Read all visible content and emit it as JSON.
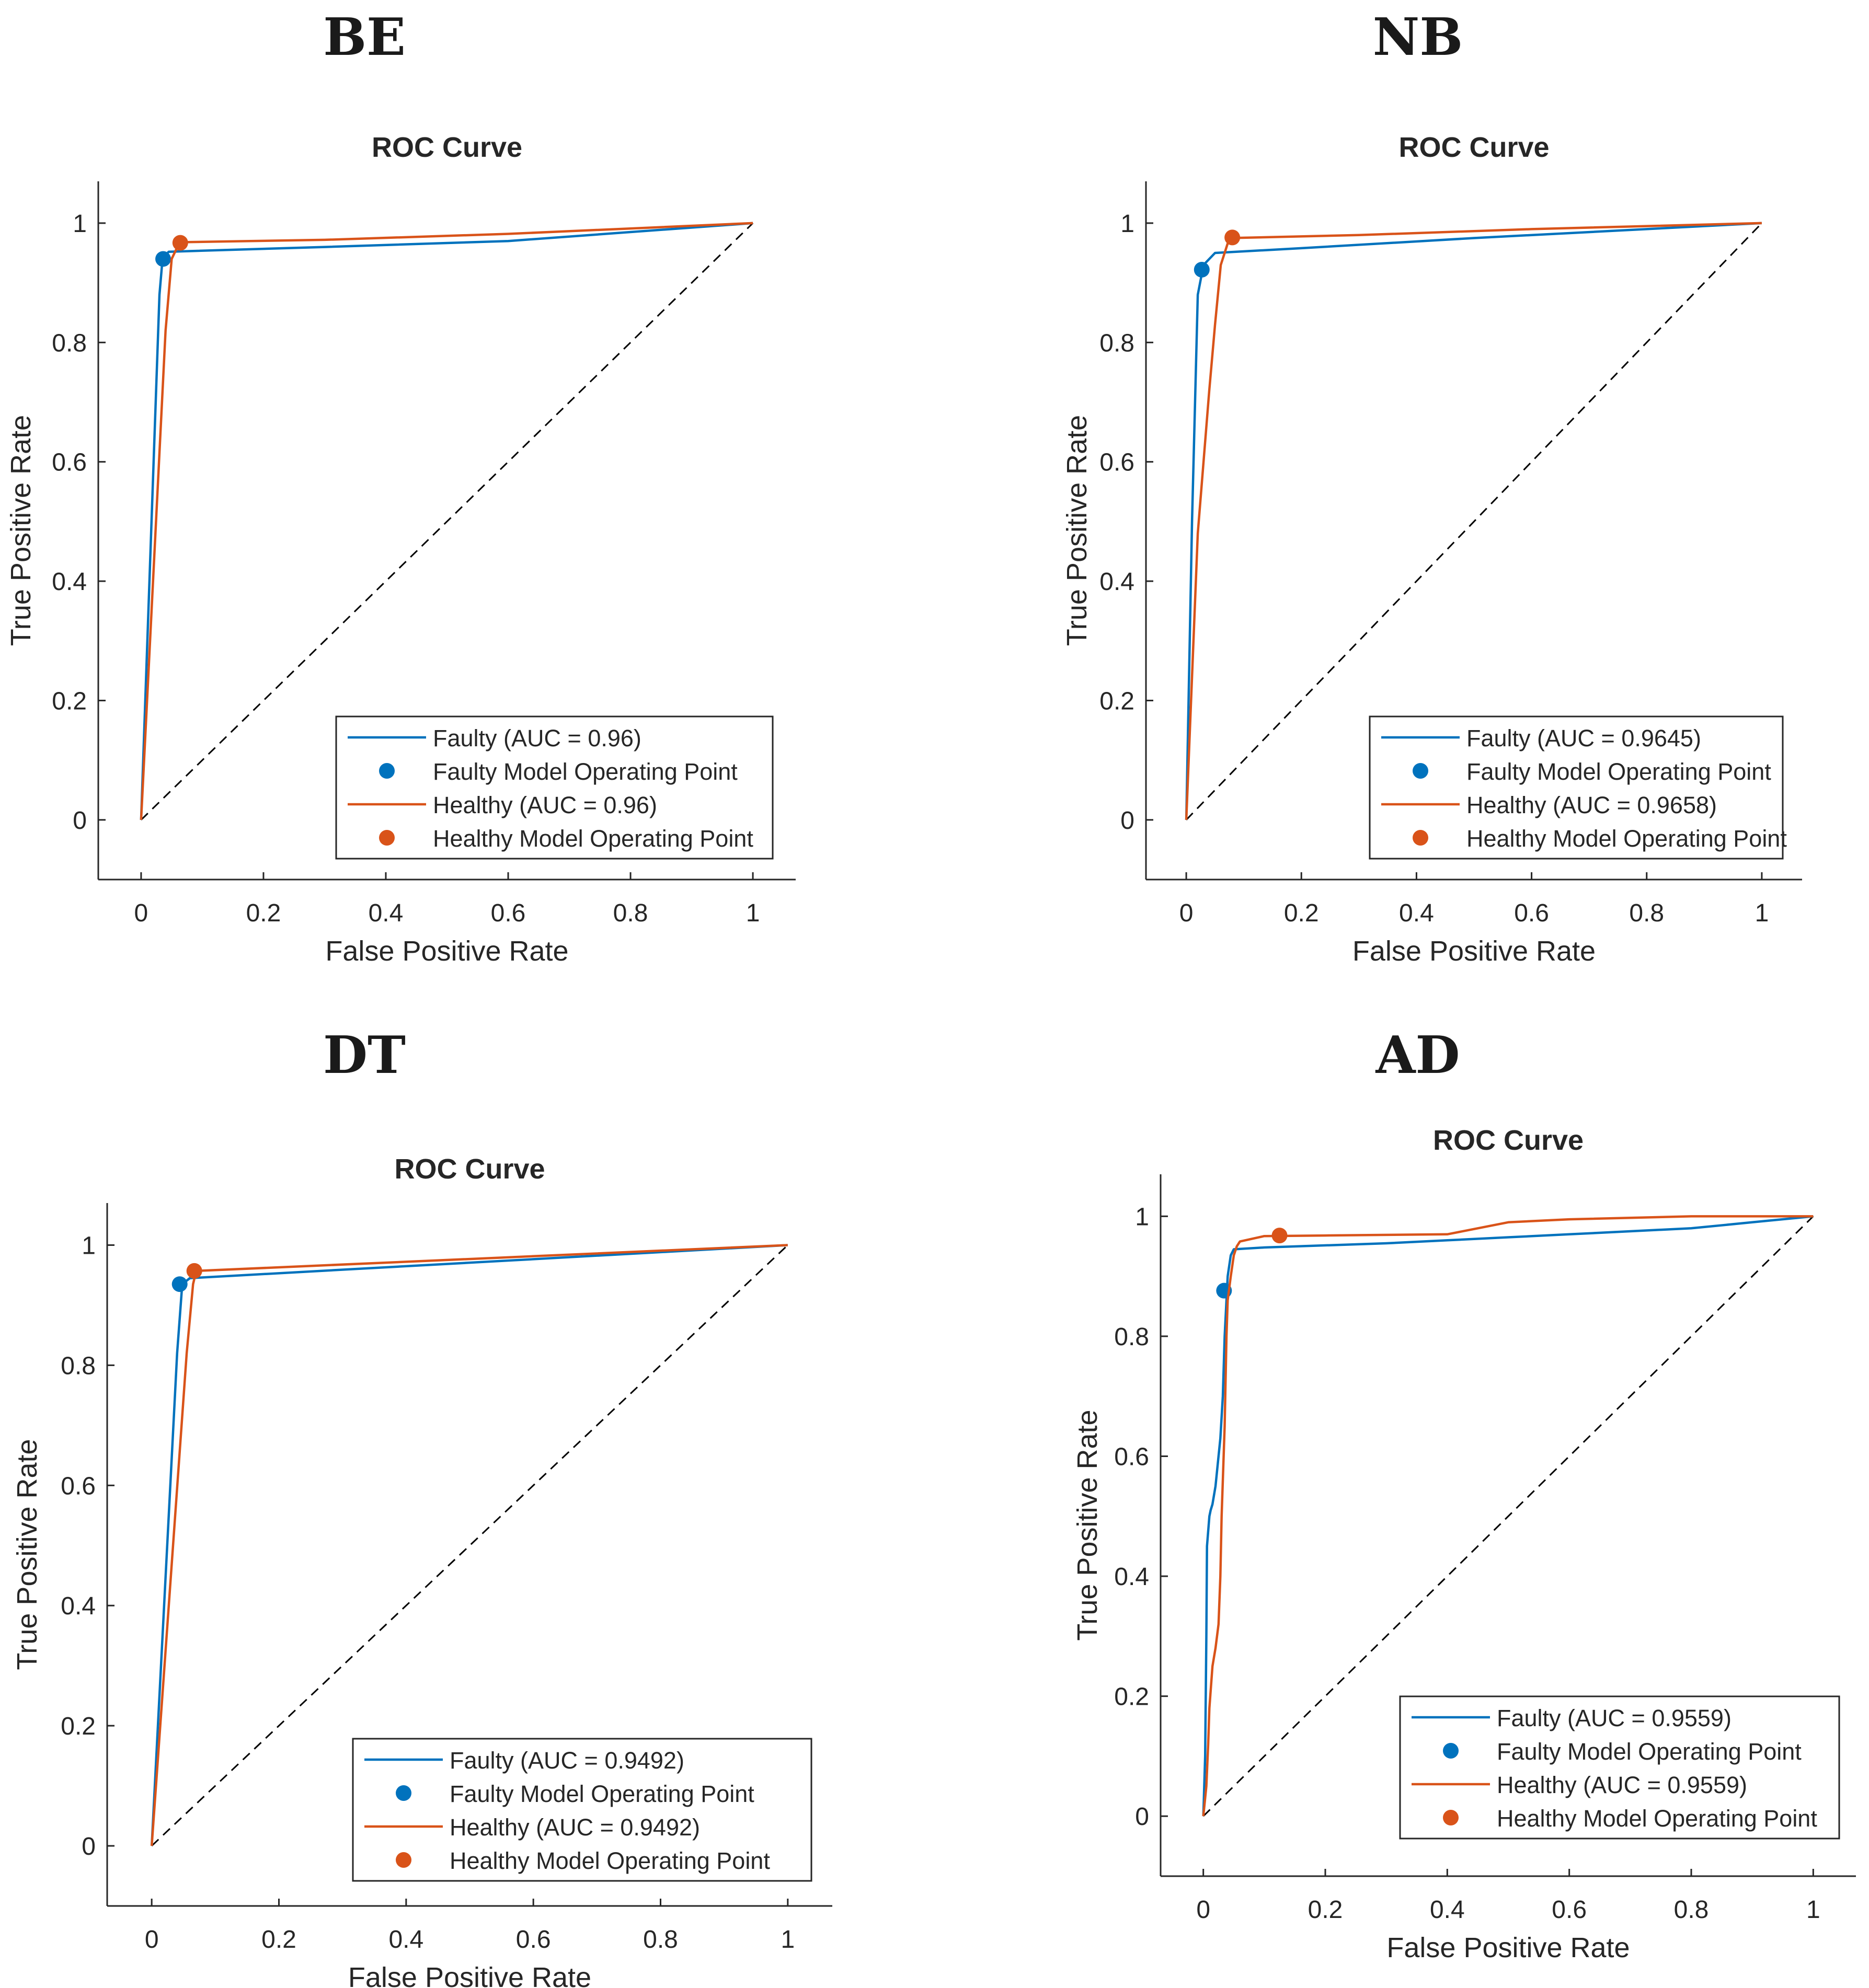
{
  "colors": {
    "faulty": "#0072BD",
    "healthy": "#D95319",
    "axis": "#262626",
    "diagonal": "#000000"
  },
  "chart_data": [
    {
      "type": "line",
      "panel_label": "BE",
      "title": "ROC Curve",
      "xlabel": "False Positive Rate",
      "ylabel": "True Positive Rate",
      "xlim": [
        -0.07,
        1.07
      ],
      "ylim": [
        -0.1,
        1.07
      ],
      "xticks": [
        0,
        0.2,
        0.4,
        0.6,
        0.8,
        1
      ],
      "xtick_labels": [
        "0",
        "0.2",
        "0.4",
        "0.6",
        "0.8",
        "1"
      ],
      "yticks": [
        0,
        0.2,
        0.4,
        0.6,
        0.8,
        1
      ],
      "ytick_labels": [
        "0",
        "0.2",
        "0.4",
        "0.6",
        "0.8",
        "1"
      ],
      "grid": false,
      "legend_position": "bottom-right",
      "series": [
        {
          "name": "Faulty (AUC = 0.96)",
          "kind": "line",
          "color_key": "faulty",
          "x": [
            0,
            0.03,
            0.035,
            0.045,
            0.3,
            0.6,
            1
          ],
          "y": [
            0,
            0.88,
            0.94,
            0.952,
            0.96,
            0.97,
            1
          ]
        },
        {
          "name": "Faulty Model Operating Point",
          "kind": "point",
          "color_key": "faulty",
          "x": [
            0.036
          ],
          "y": [
            0.94
          ]
        },
        {
          "name": "Healthy (AUC = 0.96)",
          "kind": "line",
          "color_key": "healthy",
          "x": [
            0,
            0.04,
            0.05,
            0.063,
            0.3,
            0.6,
            1
          ],
          "y": [
            0,
            0.82,
            0.94,
            0.968,
            0.972,
            0.982,
            1
          ]
        },
        {
          "name": "Healthy Model Operating Point",
          "kind": "point",
          "color_key": "healthy",
          "x": [
            0.064
          ],
          "y": [
            0.967
          ]
        }
      ]
    },
    {
      "type": "line",
      "panel_label": "NB",
      "title": "ROC Curve",
      "xlabel": "False Positive Rate",
      "ylabel": "True Positive Rate",
      "xlim": [
        -0.07,
        1.07
      ],
      "ylim": [
        -0.1,
        1.07
      ],
      "xticks": [
        0,
        0.2,
        0.4,
        0.6,
        0.8,
        1
      ],
      "xtick_labels": [
        "0",
        "0.2",
        "0.4",
        "0.6",
        "0.8",
        "1"
      ],
      "yticks": [
        0,
        0.2,
        0.4,
        0.6,
        0.8,
        1
      ],
      "ytick_labels": [
        "0",
        "0.2",
        "0.4",
        "0.6",
        "0.8",
        "1"
      ],
      "grid": false,
      "legend_position": "bottom-right",
      "series": [
        {
          "name": "Faulty (AUC = 0.9645)",
          "kind": "line",
          "color_key": "faulty",
          "x": [
            0,
            0.01,
            0.02,
            0.03,
            0.05,
            0.2,
            0.5,
            1
          ],
          "y": [
            0,
            0.5,
            0.88,
            0.93,
            0.95,
            0.958,
            0.975,
            1
          ]
        },
        {
          "name": "Faulty Model Operating Point",
          "kind": "point",
          "color_key": "faulty",
          "x": [
            0.027
          ],
          "y": [
            0.922
          ]
        },
        {
          "name": "Healthy (AUC = 0.9658)",
          "kind": "line",
          "color_key": "healthy",
          "x": [
            0,
            0.02,
            0.04,
            0.05,
            0.06,
            0.075,
            0.3,
            0.6,
            1
          ],
          "y": [
            0,
            0.48,
            0.72,
            0.83,
            0.93,
            0.975,
            0.98,
            0.99,
            1
          ]
        },
        {
          "name": "Healthy Model Operating Point",
          "kind": "point",
          "color_key": "healthy",
          "x": [
            0.08
          ],
          "y": [
            0.976
          ]
        }
      ]
    },
    {
      "type": "line",
      "panel_label": "DT",
      "title": "ROC Curve",
      "xlabel": "False Positive Rate",
      "ylabel": "True Positive Rate",
      "xlim": [
        -0.07,
        1.07
      ],
      "ylim": [
        -0.1,
        1.07
      ],
      "xticks": [
        0,
        0.2,
        0.4,
        0.6,
        0.8,
        1
      ],
      "xtick_labels": [
        "0",
        "0.2",
        "0.4",
        "0.6",
        "0.8",
        "1"
      ],
      "yticks": [
        0,
        0.2,
        0.4,
        0.6,
        0.8,
        1
      ],
      "ytick_labels": [
        "0",
        "0.2",
        "0.4",
        "0.6",
        "0.8",
        "1"
      ],
      "grid": false,
      "legend_position": "bottom-right",
      "series": [
        {
          "name": "Faulty (AUC = 0.9492)",
          "kind": "line",
          "color_key": "faulty",
          "x": [
            0,
            0.04,
            0.048,
            0.06,
            1
          ],
          "y": [
            0,
            0.82,
            0.935,
            0.945,
            1
          ]
        },
        {
          "name": "Faulty Model Operating Point",
          "kind": "point",
          "color_key": "faulty",
          "x": [
            0.044
          ],
          "y": [
            0.935
          ]
        },
        {
          "name": "Healthy (AUC = 0.9492)",
          "kind": "line",
          "color_key": "healthy",
          "x": [
            0,
            0.055,
            0.065,
            0.07,
            1
          ],
          "y": [
            0,
            0.82,
            0.935,
            0.957,
            1
          ]
        },
        {
          "name": "Healthy Model Operating Point",
          "kind": "point",
          "color_key": "healthy",
          "x": [
            0.067
          ],
          "y": [
            0.957
          ]
        }
      ]
    },
    {
      "type": "line",
      "panel_label": "AD",
      "title": "ROC Curve",
      "xlabel": "False Positive Rate",
      "ylabel": "True Positive Rate",
      "xlim": [
        -0.07,
        1.07
      ],
      "ylim": [
        -0.1,
        1.07
      ],
      "xticks": [
        0,
        0.2,
        0.4,
        0.6,
        0.8,
        1
      ],
      "xtick_labels": [
        "0",
        "0.2",
        "0.4",
        "0.6",
        "0.8",
        "1"
      ],
      "yticks": [
        0,
        0.2,
        0.4,
        0.6,
        0.8,
        1
      ],
      "ytick_labels": [
        "0",
        "0.2",
        "0.4",
        "0.6",
        "0.8",
        "1"
      ],
      "grid": false,
      "legend_position": "bottom-right",
      "series": [
        {
          "name": "Faulty (AUC = 0.9559)",
          "kind": "line",
          "color_key": "faulty",
          "x": [
            0,
            0.003,
            0.005,
            0.006,
            0.01,
            0.012,
            0.015,
            0.02,
            0.025,
            0.028,
            0.032,
            0.035,
            0.04,
            0.045,
            0.05,
            0.1,
            0.3,
            0.4,
            0.5,
            0.6,
            0.7,
            0.8,
            0.9,
            1
          ],
          "y": [
            0,
            0.1,
            0.3,
            0.45,
            0.5,
            0.51,
            0.52,
            0.55,
            0.6,
            0.63,
            0.7,
            0.8,
            0.9,
            0.935,
            0.945,
            0.948,
            0.955,
            0.96,
            0.965,
            0.97,
            0.975,
            0.98,
            0.99,
            1
          ]
        },
        {
          "name": "Faulty Model Operating Point",
          "kind": "point",
          "color_key": "faulty",
          "x": [
            0.034
          ],
          "y": [
            0.876
          ]
        },
        {
          "name": "Healthy (AUC = 0.9559)",
          "kind": "line",
          "color_key": "healthy",
          "x": [
            0,
            0.005,
            0.008,
            0.01,
            0.015,
            0.02,
            0.025,
            0.028,
            0.03,
            0.035,
            0.038,
            0.04,
            0.045,
            0.05,
            0.055,
            0.06,
            0.1,
            0.2,
            0.4,
            0.45,
            0.5,
            0.6,
            0.8,
            1
          ],
          "y": [
            0,
            0.05,
            0.12,
            0.18,
            0.25,
            0.28,
            0.32,
            0.4,
            0.5,
            0.65,
            0.8,
            0.86,
            0.9,
            0.935,
            0.95,
            0.958,
            0.967,
            0.968,
            0.97,
            0.98,
            0.99,
            0.995,
            1,
            1
          ]
        },
        {
          "name": "Healthy Model Operating Point",
          "kind": "point",
          "color_key": "healthy",
          "x": [
            0.125
          ],
          "y": [
            0.968
          ]
        }
      ]
    }
  ]
}
